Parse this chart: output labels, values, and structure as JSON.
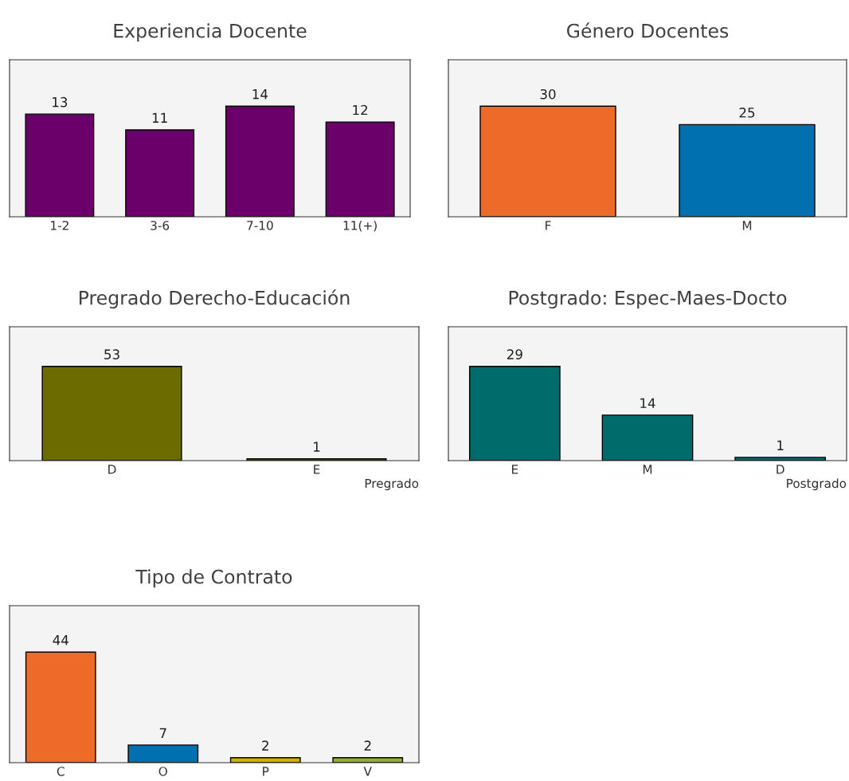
{
  "chart_data": [
    {
      "type": "bar",
      "title": "Experiencia Docente",
      "categories": [
        "1-2",
        "3-6",
        "7-10",
        "11(+)"
      ],
      "values": [
        13,
        11,
        14,
        12
      ],
      "colors": [
        "#6b006b",
        "#6b006b",
        "#6b006b",
        "#6b006b"
      ],
      "data_labels": true,
      "grid": false,
      "legend": false
    },
    {
      "type": "bar",
      "title": "Género Docentes",
      "categories": [
        "F",
        "M"
      ],
      "values": [
        30,
        25
      ],
      "colors": [
        "#ee6a28",
        "#0070b0"
      ],
      "data_labels": true,
      "grid": false,
      "legend": false
    },
    {
      "type": "bar",
      "title": "Pregrado Derecho-Educación",
      "xlabel": "Pregrado",
      "categories": [
        "D",
        "E"
      ],
      "values": [
        53,
        1
      ],
      "colors": [
        "#6b6b00",
        "#6b6b00"
      ],
      "data_labels": true,
      "grid": false,
      "legend": false
    },
    {
      "type": "bar",
      "title": "Postgrado: Espec-Maes-Docto",
      "xlabel": "Postgrado",
      "categories": [
        "E",
        "M",
        "D"
      ],
      "values": [
        29,
        14,
        1
      ],
      "colors": [
        "#006b6b",
        "#006b6b",
        "#006b6b"
      ],
      "data_labels": true,
      "grid": false,
      "legend": false
    },
    {
      "type": "bar",
      "title": "Tipo de Contrato",
      "categories": [
        "C",
        "O",
        "P",
        "V"
      ],
      "values": [
        44,
        7,
        2,
        2
      ],
      "colors": [
        "#ee6a28",
        "#0070b0",
        "#d0b000",
        "#90b030"
      ],
      "data_labels": true,
      "grid": false,
      "legend": false
    }
  ]
}
